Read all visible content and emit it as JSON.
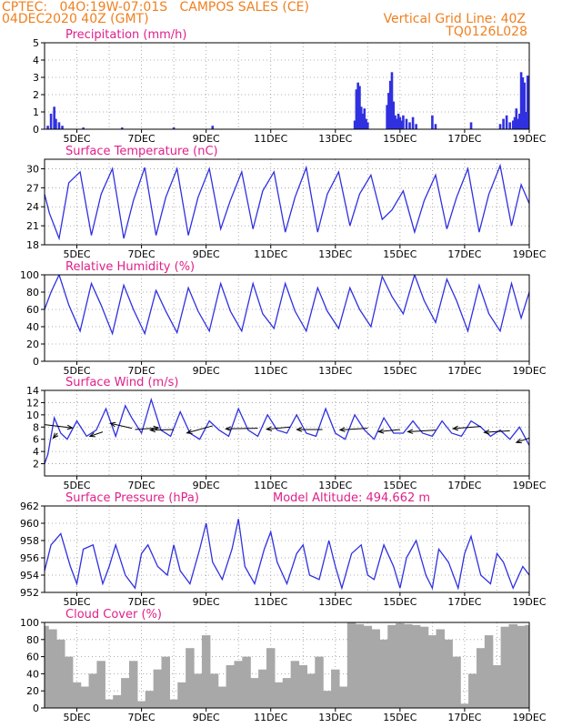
{
  "header": {
    "line1": "CPTEC:   04O:19W-07:01S   CAMPOS SALES (CE)",
    "line2": "04DEC2020 40Z (GMT)",
    "grid_note": "Vertical Grid Line: 40Z",
    "code": "TQ0126L028"
  },
  "x_tick_labels": [
    "5DEC",
    "7DEC",
    "9DEC",
    "11DEC",
    "13DEC",
    "15DEC",
    "17DEC",
    "19DEC"
  ],
  "colors": {
    "line": "#3030e0",
    "bar": "#3030e0",
    "cloud": "#a8a8a8",
    "title": "#e0208a",
    "header": "#f08020"
  },
  "chart_data": [
    {
      "id": "precip",
      "type": "bar",
      "title": "Precipitation (mm/h)",
      "ylim": [
        0,
        5
      ],
      "yticks": [
        0,
        1,
        2,
        3,
        4,
        5
      ],
      "x": [
        4.1,
        4.2,
        4.3,
        4.35,
        4.45,
        4.55,
        5.2,
        6.4,
        8.0,
        9.2,
        13.6,
        13.65,
        13.7,
        13.75,
        13.8,
        13.85,
        13.9,
        13.95,
        14.0,
        14.6,
        14.65,
        14.7,
        14.75,
        14.8,
        14.85,
        14.9,
        14.95,
        15.0,
        15.05,
        15.1,
        15.2,
        15.3,
        15.4,
        15.5,
        16.0,
        16.1,
        17.2,
        18.1,
        18.2,
        18.3,
        18.4,
        18.5,
        18.55,
        18.6,
        18.65,
        18.7,
        18.75,
        18.8,
        18.85,
        18.9,
        18.95,
        19.0
      ],
      "values": [
        0.2,
        0.9,
        1.3,
        0.6,
        0.4,
        0.2,
        0.1,
        0.1,
        0.1,
        0.2,
        0.5,
        2.3,
        2.7,
        2.5,
        1.3,
        0.9,
        1.2,
        0.6,
        0.4,
        1.4,
        2.1,
        2.8,
        3.3,
        1.6,
        0.8,
        0.6,
        0.9,
        0.7,
        0.5,
        0.8,
        0.6,
        0.4,
        0.7,
        0.3,
        0.8,
        0.3,
        0.4,
        0.3,
        0.6,
        0.8,
        0.4,
        0.5,
        0.7,
        1.2,
        0.6,
        0.9,
        3.3,
        3.0,
        2.7,
        1.0,
        3.1,
        1.3
      ]
    },
    {
      "id": "temp",
      "type": "line",
      "title": "Surface Temperature (nC)",
      "ylim": [
        18,
        31.5
      ],
      "yticks": [
        18,
        21,
        24,
        27,
        30
      ],
      "x": [
        4.0,
        4.15,
        4.45,
        4.75,
        5.1,
        5.45,
        5.75,
        6.1,
        6.45,
        6.75,
        7.1,
        7.45,
        7.75,
        8.1,
        8.45,
        8.75,
        9.1,
        9.45,
        9.75,
        10.1,
        10.45,
        10.75,
        11.1,
        11.45,
        11.75,
        12.1,
        12.45,
        12.75,
        13.1,
        13.45,
        13.75,
        14.1,
        14.45,
        14.75,
        15.1,
        15.45,
        15.75,
        16.1,
        16.45,
        16.75,
        17.1,
        17.45,
        17.75,
        18.1,
        18.45,
        18.75,
        19.0
      ],
      "values": [
        26.0,
        23.0,
        19.0,
        27.8,
        29.5,
        19.5,
        26.0,
        30.0,
        19.0,
        25.0,
        30.2,
        19.5,
        25.5,
        30.0,
        19.5,
        25.5,
        30.0,
        20.5,
        25.0,
        29.5,
        20.5,
        26.5,
        29.5,
        20.0,
        25.5,
        30.2,
        20.0,
        26.0,
        29.5,
        21.0,
        26.0,
        29.0,
        22.0,
        23.5,
        26.5,
        20.0,
        25.0,
        29.0,
        20.5,
        25.5,
        30.0,
        20.0,
        26.0,
        30.5,
        21.0,
        27.5,
        24.5
      ]
    },
    {
      "id": "rh",
      "type": "line",
      "title": "Relative Humidity (%)",
      "ylim": [
        0,
        100
      ],
      "yticks": [
        0,
        20,
        40,
        60,
        80,
        100
      ],
      "x": [
        4.0,
        4.2,
        4.45,
        4.75,
        5.1,
        5.45,
        5.75,
        6.1,
        6.45,
        6.75,
        7.1,
        7.45,
        7.75,
        8.1,
        8.45,
        8.75,
        9.1,
        9.45,
        9.75,
        10.1,
        10.45,
        10.75,
        11.1,
        11.45,
        11.75,
        12.1,
        12.45,
        12.75,
        13.1,
        13.45,
        13.75,
        14.1,
        14.45,
        14.75,
        15.1,
        15.45,
        15.75,
        16.1,
        16.45,
        16.75,
        17.1,
        17.45,
        17.75,
        18.1,
        18.45,
        18.75,
        19.0
      ],
      "values": [
        60,
        80,
        100,
        65,
        35,
        90,
        65,
        32,
        88,
        60,
        32,
        82,
        58,
        33,
        85,
        58,
        35,
        90,
        58,
        35,
        90,
        55,
        38,
        90,
        58,
        35,
        85,
        58,
        38,
        85,
        60,
        40,
        98,
        75,
        55,
        100,
        70,
        45,
        95,
        70,
        35,
        88,
        55,
        35,
        90,
        50,
        80
      ]
    },
    {
      "id": "wind",
      "type": "line",
      "title": "Surface Wind (m/s)",
      "ylim": [
        0,
        14
      ],
      "yticks": [
        2,
        4,
        6,
        8,
        10,
        12,
        14
      ],
      "x": [
        4.0,
        4.1,
        4.3,
        4.5,
        4.7,
        5.0,
        5.3,
        5.6,
        5.9,
        6.2,
        6.5,
        6.7,
        7.0,
        7.3,
        7.6,
        7.9,
        8.2,
        8.5,
        8.8,
        9.1,
        9.4,
        9.7,
        10.0,
        10.3,
        10.6,
        10.9,
        11.2,
        11.5,
        11.8,
        12.1,
        12.4,
        12.7,
        13.0,
        13.3,
        13.6,
        13.9,
        14.2,
        14.5,
        14.8,
        15.1,
        15.4,
        15.7,
        16.0,
        16.3,
        16.6,
        16.9,
        17.2,
        17.5,
        17.8,
        18.1,
        18.4,
        18.7,
        19.0
      ],
      "values": [
        2.0,
        3.5,
        9.5,
        7.0,
        6.0,
        9.0,
        6.5,
        7.5,
        11.0,
        6.5,
        11.5,
        9.5,
        7.0,
        12.5,
        7.5,
        6.5,
        10.5,
        7.0,
        6.0,
        9.0,
        7.5,
        6.5,
        11.0,
        7.5,
        6.5,
        10.0,
        7.5,
        7.0,
        10.0,
        7.0,
        6.5,
        11.0,
        7.0,
        6.0,
        10.0,
        7.5,
        6.0,
        9.5,
        7.0,
        7.0,
        9.0,
        7.0,
        6.5,
        9.0,
        7.0,
        6.5,
        9.0,
        8.0,
        6.5,
        7.5,
        6.0,
        8.0,
        5.0
      ],
      "vectors": [
        {
          "x": 4.0,
          "y": 8.4,
          "dx": 1.3,
          "dy": -0.6
        },
        {
          "x": 4.4,
          "y": 7.0,
          "dx": -0.2,
          "dy": -0.9
        },
        {
          "x": 5.8,
          "y": 7.2,
          "dx": -0.6,
          "dy": -0.8
        },
        {
          "x": 6.7,
          "y": 7.8,
          "dx": -1.0,
          "dy": 0.9
        },
        {
          "x": 6.8,
          "y": 7.6,
          "dx": 1.1,
          "dy": 0.3
        },
        {
          "x": 8.0,
          "y": 7.6,
          "dx": -1.1,
          "dy": -0.1
        },
        {
          "x": 9.2,
          "y": 8.2,
          "dx": -1.2,
          "dy": -1.3
        },
        {
          "x": 10.6,
          "y": 7.8,
          "dx": -1.5,
          "dy": -0.1
        },
        {
          "x": 11.6,
          "y": 8.0,
          "dx": -1.1,
          "dy": -0.4
        },
        {
          "x": 12.6,
          "y": 7.6,
          "dx": -1.2,
          "dy": 0.0
        },
        {
          "x": 14.0,
          "y": 7.8,
          "dx": -1.3,
          "dy": -0.3
        },
        {
          "x": 15.0,
          "y": 7.6,
          "dx": -1.0,
          "dy": -0.4
        },
        {
          "x": 16.1,
          "y": 7.5,
          "dx": -1.3,
          "dy": -0.3
        },
        {
          "x": 17.5,
          "y": 8.1,
          "dx": -1.3,
          "dy": -0.4
        },
        {
          "x": 18.4,
          "y": 7.4,
          "dx": -1.2,
          "dy": -0.3
        },
        {
          "x": 19.0,
          "y": 6.2,
          "dx": -0.6,
          "dy": -0.8
        }
      ]
    },
    {
      "id": "press",
      "type": "line",
      "title": "Surface Pressure (hPa)",
      "annotation": "Model Altitude: 494.662 m",
      "ylim": [
        952,
        962
      ],
      "yticks": [
        952,
        954,
        956,
        958,
        960,
        962
      ],
      "x": [
        4.0,
        4.2,
        4.5,
        4.8,
        5.0,
        5.2,
        5.5,
        5.8,
        6.0,
        6.2,
        6.5,
        6.8,
        7.0,
        7.2,
        7.5,
        7.8,
        8.0,
        8.2,
        8.5,
        8.8,
        9.0,
        9.2,
        9.5,
        9.8,
        10.0,
        10.2,
        10.5,
        10.8,
        11.0,
        11.2,
        11.5,
        11.8,
        12.0,
        12.2,
        12.5,
        12.8,
        13.0,
        13.2,
        13.5,
        13.8,
        14.0,
        14.2,
        14.5,
        14.8,
        15.0,
        15.2,
        15.5,
        15.8,
        16.0,
        16.2,
        16.5,
        16.8,
        17.0,
        17.2,
        17.5,
        17.8,
        18.0,
        18.2,
        18.5,
        18.8,
        19.0
      ],
      "values": [
        954.5,
        957.5,
        958.8,
        955.0,
        953.0,
        957.0,
        957.5,
        953.0,
        955.0,
        957.5,
        954.0,
        952.5,
        956.5,
        957.5,
        955.0,
        954.0,
        957.5,
        954.5,
        953.0,
        957.0,
        960.0,
        955.5,
        953.5,
        957.0,
        960.5,
        955.0,
        953.0,
        957.0,
        959.0,
        955.5,
        953.0,
        956.5,
        957.5,
        954.0,
        953.5,
        958.0,
        955.0,
        952.5,
        956.5,
        957.5,
        954.0,
        953.5,
        957.5,
        955.0,
        952.5,
        956.0,
        958.0,
        954.0,
        952.5,
        957.0,
        955.5,
        952.5,
        956.5,
        958.5,
        954.0,
        953.0,
        956.5,
        955.5,
        952.5,
        955.0,
        954.0
      ]
    },
    {
      "id": "cloud",
      "type": "bar",
      "title": "Cloud Cover (%)",
      "ylim": [
        0,
        100
      ],
      "yticks": [
        0,
        20,
        40,
        60,
        80,
        100
      ],
      "x": [
        4.0,
        4.25,
        4.5,
        4.75,
        5.0,
        5.25,
        5.5,
        5.75,
        6.0,
        6.25,
        6.5,
        6.75,
        7.0,
        7.25,
        7.5,
        7.75,
        8.0,
        8.25,
        8.5,
        8.75,
        9.0,
        9.25,
        9.5,
        9.75,
        10.0,
        10.25,
        10.5,
        10.75,
        11.0,
        11.25,
        11.5,
        11.75,
        12.0,
        12.25,
        12.5,
        12.75,
        13.0,
        13.25,
        13.5,
        13.75,
        14.0,
        14.25,
        14.5,
        14.75,
        15.0,
        15.25,
        15.5,
        15.75,
        16.0,
        16.25,
        16.5,
        16.75,
        17.0,
        17.25,
        17.5,
        17.75,
        18.0,
        18.25,
        18.5,
        18.75,
        19.0
      ],
      "values": [
        96,
        92,
        80,
        60,
        30,
        25,
        40,
        55,
        10,
        15,
        35,
        55,
        8,
        20,
        45,
        60,
        10,
        30,
        70,
        40,
        85,
        40,
        25,
        50,
        55,
        60,
        35,
        45,
        70,
        30,
        35,
        55,
        50,
        40,
        60,
        20,
        45,
        25,
        100,
        98,
        96,
        92,
        80,
        97,
        99,
        98,
        97,
        95,
        85,
        92,
        80,
        60,
        5,
        40,
        70,
        85,
        50,
        95,
        98,
        96,
        97
      ]
    }
  ]
}
